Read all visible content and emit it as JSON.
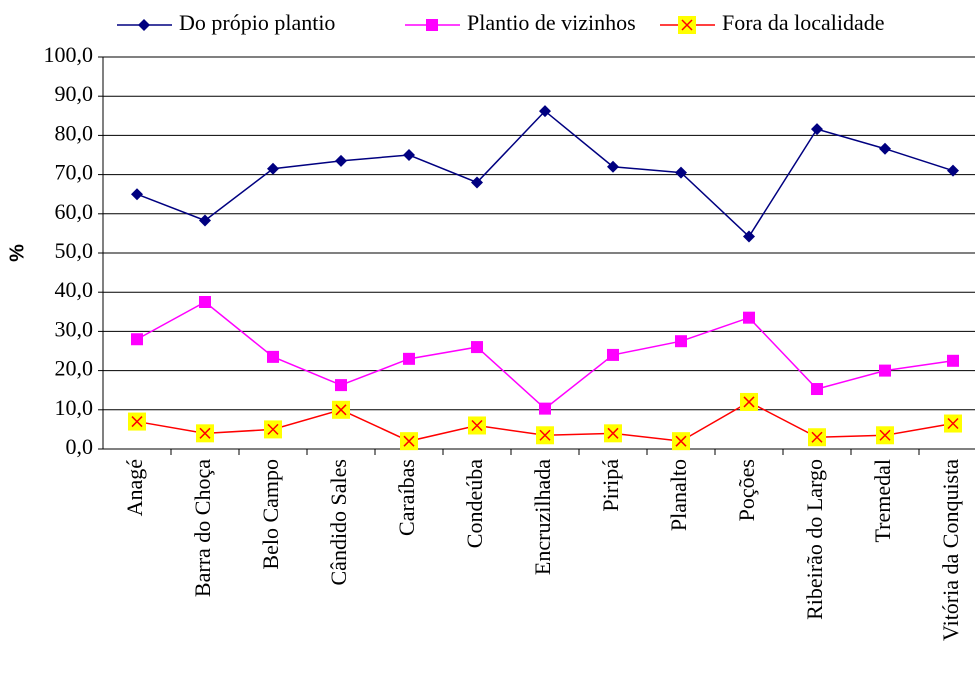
{
  "chart_data": {
    "type": "line",
    "ylabel": "%",
    "categories": [
      "Anagé",
      "Barra do Choça",
      "Belo Campo",
      "Cândido Sales",
      "Caraíbas",
      "Condeúba",
      "Encruzilhada",
      "Piripá",
      "Planalto",
      "Poções",
      "Ribeirão do Largo",
      "Tremedal",
      "Vitória da Conquista"
    ],
    "series": [
      {
        "name": "Do própio plantio",
        "color": "#000080",
        "marker": "diamond",
        "marker_color": "#000080",
        "values": [
          65.0,
          58.3,
          71.5,
          73.5,
          75.0,
          68.0,
          86.2,
          72.0,
          70.5,
          54.2,
          81.6,
          76.6,
          71.0
        ]
      },
      {
        "name": "Plantio de vizinhos",
        "color": "#ff00ff",
        "marker": "square",
        "marker_color": "#ff00ff",
        "values": [
          28.0,
          37.5,
          23.5,
          16.3,
          23.0,
          26.0,
          10.3,
          24.0,
          27.5,
          33.5,
          15.3,
          20.0,
          22.5
        ]
      },
      {
        "name": "Fora da localidade",
        "color": "#ff0000",
        "marker": "x",
        "marker_color": "#ffff00",
        "values": [
          7.0,
          4.0,
          5.0,
          10.0,
          2.0,
          6.0,
          3.5,
          4.0,
          2.0,
          12.0,
          3.0,
          3.5,
          6.5
        ]
      }
    ],
    "ylim": [
      0,
      100
    ],
    "yticks": [
      {
        "value": 0,
        "label": "0,0"
      },
      {
        "value": 10,
        "label": "10,0"
      },
      {
        "value": 20,
        "label": "20,0"
      },
      {
        "value": 30,
        "label": "30,0"
      },
      {
        "value": 40,
        "label": "40,0"
      },
      {
        "value": 50,
        "label": "50,0"
      },
      {
        "value": 60,
        "label": "60,0"
      },
      {
        "value": 70,
        "label": "70,0"
      },
      {
        "value": 80,
        "label": "80,0"
      },
      {
        "value": 90,
        "label": "90,0"
      },
      {
        "value": 100,
        "label": "100,0"
      }
    ],
    "grid": true,
    "legend": "top"
  }
}
